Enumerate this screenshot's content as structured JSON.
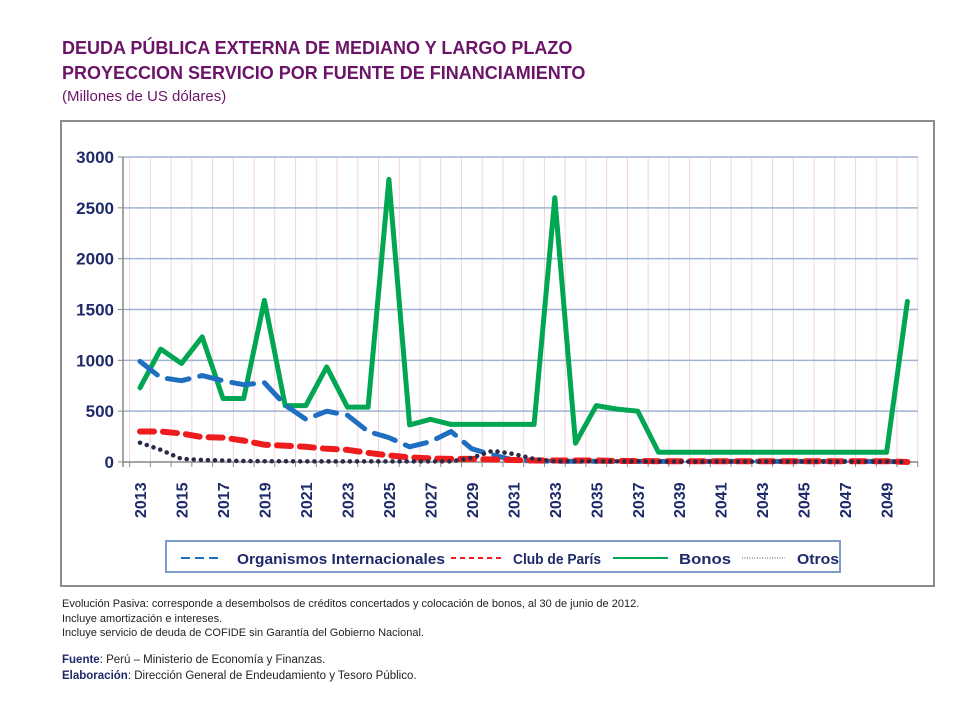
{
  "header": {
    "title_line1": "DEUDA PÚBLICA EXTERNA DE MEDIANO Y LARGO PLAZO",
    "title_line2": "PROYECCION SERVICIO POR FUENTE DE FINANCIAMIENTO",
    "subtitle": "(Millones de US dólares)"
  },
  "chart_data": {
    "type": "line",
    "title": "DEUDA PÚBLICA EXTERNA DE MEDIANO Y LARGO PLAZO — PROYECCION SERVICIO POR FUENTE DE FINANCIAMIENTO",
    "ylabel": "Millones de US dólares",
    "xlabel": "",
    "ylim": [
      0,
      3000
    ],
    "yticks": [
      0,
      500,
      1000,
      1500,
      2000,
      2500,
      3000
    ],
    "grid": true,
    "legend_position": "bottom",
    "x": [
      2013,
      2014,
      2015,
      2016,
      2017,
      2018,
      2019,
      2020,
      2021,
      2022,
      2023,
      2024,
      2025,
      2026,
      2027,
      2028,
      2029,
      2030,
      2031,
      2032,
      2033,
      2034,
      2035,
      2036,
      2037,
      2038,
      2039,
      2040,
      2041,
      2042,
      2043,
      2044,
      2045,
      2046,
      2047,
      2048,
      2049,
      2050
    ],
    "xtick_labels": [
      "2013",
      "2015",
      "2017",
      "2019",
      "2021",
      "2023",
      "2025",
      "2027",
      "2029",
      "2031",
      "2033",
      "2035",
      "2037",
      "2039",
      "2041",
      "2043",
      "2045",
      "2047",
      "2049"
    ],
    "series": [
      {
        "name": "Organismos Internacionales",
        "color": "#1f6fc0",
        "style": "dashed",
        "values": [
          990,
          830,
          800,
          850,
          800,
          760,
          780,
          560,
          420,
          500,
          460,
          300,
          240,
          150,
          200,
          300,
          130,
          70,
          20,
          10,
          8,
          8,
          8,
          8,
          6,
          6,
          6,
          6,
          6,
          6,
          6,
          6,
          6,
          6,
          6,
          6,
          6,
          0
        ]
      },
      {
        "name": "Club de París",
        "color": "#ee1c1c",
        "style": "dashed",
        "values": [
          300,
          300,
          280,
          245,
          240,
          210,
          170,
          160,
          150,
          130,
          120,
          90,
          65,
          45,
          35,
          30,
          30,
          25,
          20,
          15,
          15,
          15,
          15,
          10,
          10,
          8,
          8,
          8,
          8,
          8,
          8,
          8,
          8,
          8,
          8,
          8,
          8,
          0
        ]
      },
      {
        "name": "Bonos",
        "color": "#00a651",
        "style": "solid",
        "values": [
          730,
          1110,
          970,
          1230,
          625,
          625,
          1590,
          555,
          555,
          935,
          540,
          540,
          2780,
          365,
          420,
          370,
          370,
          370,
          370,
          370,
          2600,
          185,
          555,
          520,
          500,
          95,
          95,
          95,
          95,
          95,
          95,
          95,
          95,
          95,
          95,
          95,
          95,
          1580
        ]
      },
      {
        "name": "Otros",
        "color": "#2b2a4a",
        "style": "dotted",
        "values": [
          190,
          120,
          30,
          20,
          15,
          10,
          8,
          8,
          6,
          6,
          6,
          6,
          6,
          6,
          6,
          6,
          40,
          110,
          80,
          30,
          6,
          6,
          6,
          6,
          6,
          4,
          4,
          4,
          4,
          4,
          4,
          4,
          4,
          4,
          4,
          4,
          4,
          0
        ]
      }
    ]
  },
  "notes": {
    "line1": "Evolución Pasiva: corresponde a desembolsos de créditos concertados y colocación de bonos, al 30 de  junio de 2012.",
    "line2": "Incluye amortización e intereses.",
    "line3": "Incluye servicio de deuda de COFIDE sin Garantía del  Gobierno Nacional.",
    "source_label": "Fuente",
    "source_text": ": Perú – Ministerio de Economía y Finanzas.",
    "elaboration_label": "Elaboración",
    "elaboration_text": ":  Dirección General de Endeudamiento y Tesoro Público."
  },
  "colors": {
    "title": "#6b1468",
    "axis_text": "#1f2a6b",
    "h_grid": "#9fb4d2",
    "v_grid": "#f0d4d8"
  }
}
